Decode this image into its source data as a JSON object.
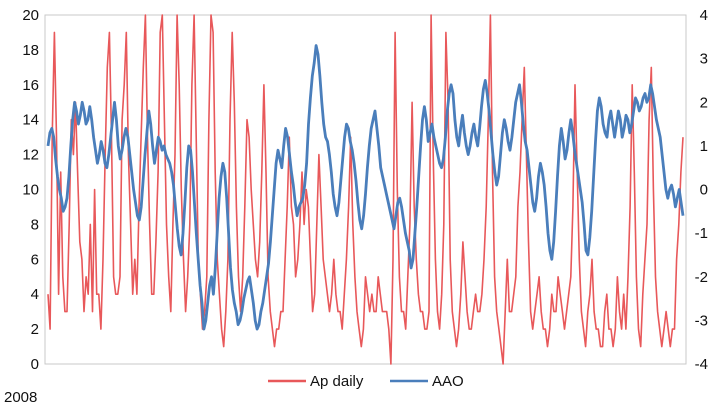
{
  "chart_data": {
    "type": "line",
    "title": "",
    "xlabel": "2008",
    "ylabel": "",
    "y_left_lim": [
      0,
      20
    ],
    "y_left_ticks": [
      "0",
      "2",
      "4",
      "6",
      "8",
      "10",
      "12",
      "14",
      "16",
      "18",
      "20"
    ],
    "y_right_lim": [
      -4,
      4
    ],
    "y_right_ticks": [
      "-4",
      "-3",
      "-2",
      "-1",
      "0",
      "1",
      "2",
      "3",
      "4"
    ],
    "grid": false,
    "legend_position": "bottom",
    "series": [
      {
        "name": "Ap daily",
        "axis": "left",
        "color": "#e8585a",
        "values": [
          4,
          2,
          13,
          19,
          13,
          4,
          11,
          5,
          3,
          3,
          8,
          14,
          12,
          15,
          11,
          7,
          6,
          3,
          5,
          4,
          8,
          3,
          10,
          4,
          4,
          2,
          6,
          12,
          17,
          19,
          13,
          5,
          4,
          4,
          5,
          14,
          16,
          19,
          12,
          8,
          4,
          6,
          4,
          9,
          13,
          17,
          20,
          13,
          8,
          4,
          4,
          7,
          11,
          19,
          20,
          14,
          8,
          5,
          3,
          8,
          12,
          20,
          16,
          10,
          6,
          3,
          5,
          8,
          16,
          20,
          13,
          6,
          4,
          2,
          3,
          5,
          14,
          20,
          19,
          11,
          6,
          4,
          2,
          1,
          3,
          6,
          14,
          19,
          15,
          9,
          5,
          3,
          5,
          9,
          14,
          13,
          10,
          8,
          6,
          5,
          7,
          11,
          16,
          11,
          5,
          3,
          2,
          1,
          2,
          2,
          3,
          3,
          6,
          9,
          13,
          9,
          8,
          5,
          6,
          8,
          11,
          8,
          10,
          9,
          6,
          3,
          4,
          8,
          12,
          9,
          6,
          5,
          4,
          3,
          4,
          6,
          4,
          3,
          3,
          2,
          4,
          6,
          9,
          13,
          8,
          5,
          3,
          2,
          1,
          2,
          5,
          4,
          3,
          4,
          3,
          3,
          5,
          4,
          3,
          3,
          3,
          2,
          0,
          6,
          19,
          10,
          5,
          3,
          3,
          2,
          5,
          8,
          15,
          9,
          6,
          4,
          3,
          3,
          2,
          2,
          3,
          20,
          12,
          6,
          3,
          2,
          4,
          8,
          19,
          15,
          6,
          3,
          2,
          1,
          2,
          4,
          7,
          5,
          3,
          2,
          2,
          3,
          4,
          3,
          3,
          4,
          6,
          9,
          14,
          20,
          11,
          5,
          3,
          2,
          1,
          0,
          3,
          6,
          3,
          3,
          4,
          5,
          9,
          11,
          14,
          17,
          12,
          7,
          3,
          2,
          3,
          4,
          5,
          3,
          2,
          2,
          1,
          2,
          4,
          3,
          3,
          5,
          4,
          3,
          2,
          3,
          4,
          5,
          9,
          16,
          11,
          6,
          3,
          2,
          1,
          3,
          4,
          6,
          3,
          2,
          2,
          1,
          1,
          3,
          4,
          2,
          2,
          1,
          2,
          5,
          3,
          2,
          4,
          2,
          5,
          9,
          16,
          11,
          5,
          2,
          1,
          4,
          6,
          8,
          14,
          17,
          10,
          5,
          3,
          2,
          1,
          2,
          3,
          2,
          1,
          2,
          2,
          6,
          8,
          11,
          13
        ]
      },
      {
        "name": "AAO",
        "axis": "right",
        "color": "#4a7ebb",
        "values": [
          1.0,
          1.3,
          1.4,
          1.2,
          0.7,
          0.3,
          0.0,
          -0.2,
          -0.5,
          -0.4,
          -0.2,
          0.3,
          1.0,
          1.6,
          2.0,
          1.8,
          1.5,
          1.7,
          2.0,
          1.8,
          1.5,
          1.6,
          1.9,
          1.6,
          1.2,
          0.9,
          0.6,
          0.8,
          1.1,
          0.9,
          0.6,
          0.5,
          0.8,
          1.2,
          1.6,
          2.0,
          1.6,
          1.0,
          0.7,
          0.9,
          1.2,
          1.4,
          1.2,
          0.8,
          0.4,
          0.0,
          -0.3,
          -0.6,
          -0.7,
          -0.4,
          0.2,
          0.8,
          1.3,
          1.8,
          1.5,
          1.0,
          0.6,
          0.9,
          1.2,
          1.1,
          0.9,
          1.0,
          0.8,
          0.7,
          0.6,
          0.4,
          0.1,
          -0.4,
          -0.9,
          -1.3,
          -1.5,
          -1.0,
          -0.3,
          0.5,
          1.0,
          0.9,
          0.4,
          -0.3,
          -1.0,
          -1.6,
          -2.2,
          -2.6,
          -3.2,
          -3.0,
          -2.6,
          -2.2,
          -2.0,
          -2.4,
          -1.8,
          -1.0,
          -0.2,
          0.3,
          0.6,
          0.4,
          -0.2,
          -1.0,
          -1.8,
          -2.3,
          -2.6,
          -2.8,
          -3.1,
          -3.0,
          -2.8,
          -2.5,
          -2.3,
          -2.1,
          -2.0,
          -2.3,
          -2.6,
          -3.0,
          -3.2,
          -3.1,
          -2.8,
          -2.6,
          -2.3,
          -2.0,
          -1.7,
          -1.2,
          -0.6,
          0.0,
          0.6,
          0.9,
          0.7,
          0.5,
          1.0,
          1.4,
          1.2,
          0.8,
          0.4,
          0.1,
          -0.3,
          -0.6,
          -0.4,
          -0.3,
          -0.2,
          0.1,
          0.6,
          1.5,
          2.1,
          2.6,
          2.9,
          3.3,
          3.1,
          2.6,
          2.0,
          1.5,
          1.2,
          1.1,
          0.8,
          0.4,
          -0.1,
          -0.4,
          -0.6,
          -0.3,
          0.2,
          0.7,
          1.2,
          1.5,
          1.4,
          1.1,
          0.9,
          0.6,
          0.2,
          -0.3,
          -0.7,
          -0.9,
          -0.6,
          -0.1,
          0.5,
          1.0,
          1.4,
          1.6,
          1.8,
          1.4,
          1.0,
          0.5,
          0.3,
          0.1,
          -0.1,
          -0.3,
          -0.5,
          -0.7,
          -0.9,
          -0.6,
          -0.3,
          -0.2,
          -0.4,
          -0.7,
          -1.0,
          -1.2,
          -1.4,
          -1.8,
          -1.6,
          -1.0,
          -0.4,
          0.3,
          1.0,
          1.6,
          1.9,
          1.6,
          1.1,
          1.3,
          1.5,
          1.2,
          1.0,
          0.8,
          0.6,
          0.5,
          0.7,
          1.2,
          1.8,
          2.2,
          2.4,
          2.2,
          1.6,
          1.2,
          1.0,
          1.4,
          1.7,
          1.3,
          1.0,
          0.8,
          1.0,
          1.3,
          1.5,
          1.2,
          1.0,
          1.4,
          1.9,
          2.3,
          2.5,
          2.2,
          1.8,
          1.3,
          0.8,
          0.4,
          0.1,
          0.3,
          0.8,
          1.3,
          1.6,
          1.4,
          1.1,
          0.9,
          1.2,
          1.6,
          2.0,
          2.2,
          2.4,
          2.0,
          1.5,
          1.1,
          0.9,
          0.5,
          0.1,
          -0.3,
          -0.5,
          -0.2,
          0.3,
          0.6,
          0.4,
          0.1,
          -0.4,
          -1.0,
          -1.4,
          -1.6,
          -1.2,
          -0.5,
          0.3,
          1.0,
          1.4,
          1.1,
          0.7,
          0.9,
          1.3,
          1.6,
          1.3,
          0.9,
          0.6,
          0.3,
          0.0,
          -0.3,
          -0.8,
          -1.4,
          -1.5,
          -1.1,
          -0.5,
          0.3,
          1.1,
          1.8,
          2.1,
          1.9,
          1.5,
          1.3,
          1.2,
          1.6,
          1.8,
          1.5,
          1.2,
          1.5,
          1.8,
          1.6,
          1.2,
          1.4,
          1.7,
          1.6,
          1.3,
          1.5,
          1.8,
          2.1,
          2.0,
          1.8,
          1.9,
          2.1,
          2.2,
          2.0,
          2.1,
          2.4,
          2.2,
          1.9,
          1.6,
          1.4,
          1.2,
          0.8,
          0.4,
          0.0,
          -0.2,
          0.0,
          0.1,
          -0.1,
          -0.4,
          -0.2,
          0.0,
          -0.3,
          -0.6
        ]
      }
    ]
  }
}
